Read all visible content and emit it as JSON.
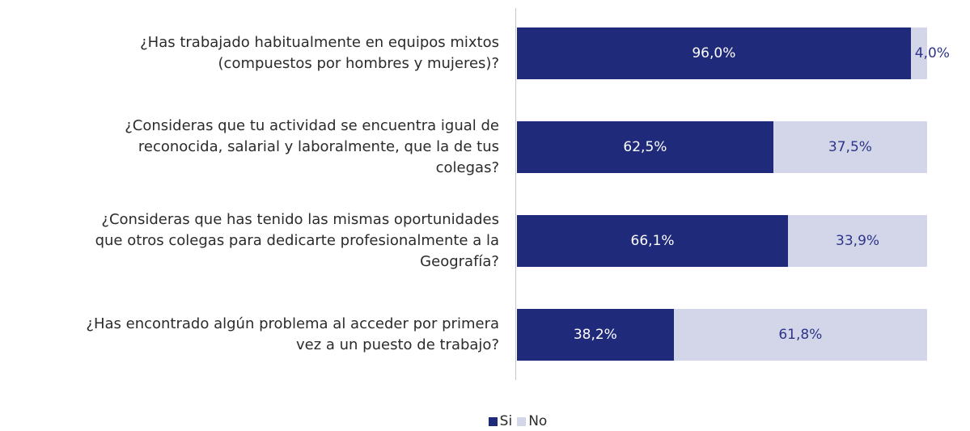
{
  "chart_data": {
    "type": "stacked-bar-horizontal",
    "categories": [
      "¿Has trabajado habitualmente en equipos mixtos\n(compuestos por hombres y mujeres)?",
      "¿Consideras que tu actividad se encuentra igual de\nreconocida, salarial y laboralmente, que la de tus\ncolegas?",
      "¿Consideras que has tenido las mismas oportunidades\nque otros colegas para dedicarte profesionalmente a la\nGeografía?",
      "¿Has encontrado algún problema al acceder por primera\nvez a un puesto de trabajo?"
    ],
    "series": [
      {
        "name": "Si",
        "color": "#1f2a7a",
        "label_color": "#ffffff",
        "values": [
          96.0,
          62.5,
          66.1,
          38.2
        ],
        "value_labels": [
          "96,0%",
          "62,5%",
          "66,1%",
          "38,2%"
        ]
      },
      {
        "name": "No",
        "color": "#d3d6e8",
        "label_color": "#2c3589",
        "values": [
          4.0,
          37.5,
          33.9,
          61.8
        ],
        "value_labels": [
          "4,0%",
          "37,5%",
          "33,9%",
          "61,8%"
        ]
      }
    ],
    "xlim": [
      0,
      100
    ],
    "legend": "bottom"
  }
}
